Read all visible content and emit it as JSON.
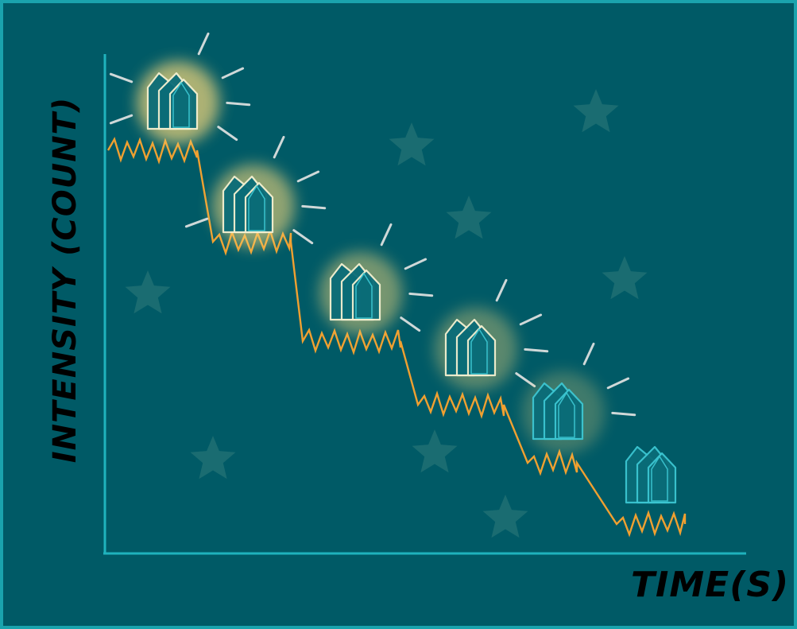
{
  "diagram": {
    "ylabel": "INTENSITY (COUNT)",
    "xlabel": "TIME(S)",
    "steps": [
      {
        "level": 6,
        "brightness": 1.0
      },
      {
        "level": 5,
        "brightness": 0.8
      },
      {
        "level": 4,
        "brightness": 0.6
      },
      {
        "level": 3,
        "brightness": 0.4
      },
      {
        "level": 2,
        "brightness": 0.2
      },
      {
        "level": 1,
        "brightness": 0.0
      }
    ],
    "colors": {
      "background": "#005a66",
      "frame": "#1aa3ad",
      "axis": "#1fb3bd",
      "trace": "#f0a030",
      "glow": "#f6d77a",
      "crystal_fill": "#0a6c78",
      "crystal_edge": "#3cc6d2",
      "ray": "#cfd8d8",
      "star": "#1d6e72"
    },
    "icons": [
      "crystal-cluster-icon",
      "star-icon",
      "sparkle-ray-icon"
    ]
  }
}
